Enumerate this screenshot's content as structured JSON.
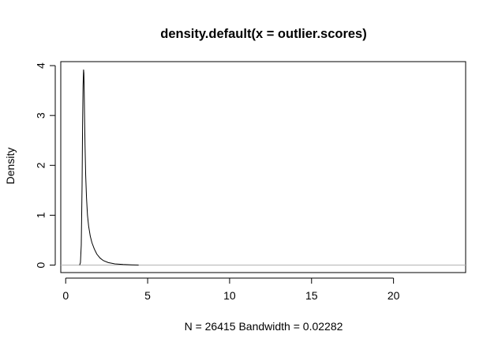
{
  "chart_data": {
    "type": "line",
    "title": "density.default(x = outlier.scores)",
    "xlabel": "N = 26415   Bandwidth = 0.02282",
    "ylabel": "Density",
    "xlim": [
      -0.3,
      24.4
    ],
    "ylim": [
      -0.15,
      4.08
    ],
    "x_ticks": [
      0,
      5,
      10,
      15,
      20
    ],
    "y_ticks": [
      0,
      1,
      2,
      3,
      4
    ],
    "zero_line": true,
    "grid": false,
    "series": [
      {
        "color": "#000000",
        "x": [
          0.85,
          0.9,
          0.95,
          1.0,
          1.03,
          1.06,
          1.09,
          1.11,
          1.13,
          1.15,
          1.18,
          1.22,
          1.27,
          1.33,
          1.4,
          1.5,
          1.6,
          1.75,
          1.9,
          2.1,
          2.3,
          2.6,
          3.0,
          3.5,
          4.0,
          4.45
        ],
        "y": [
          0.0,
          0.05,
          0.4,
          1.6,
          2.8,
          3.6,
          3.92,
          3.85,
          3.5,
          3.0,
          2.4,
          1.8,
          1.35,
          1.0,
          0.78,
          0.58,
          0.45,
          0.32,
          0.22,
          0.14,
          0.09,
          0.05,
          0.025,
          0.012,
          0.005,
          0.0
        ]
      }
    ]
  }
}
